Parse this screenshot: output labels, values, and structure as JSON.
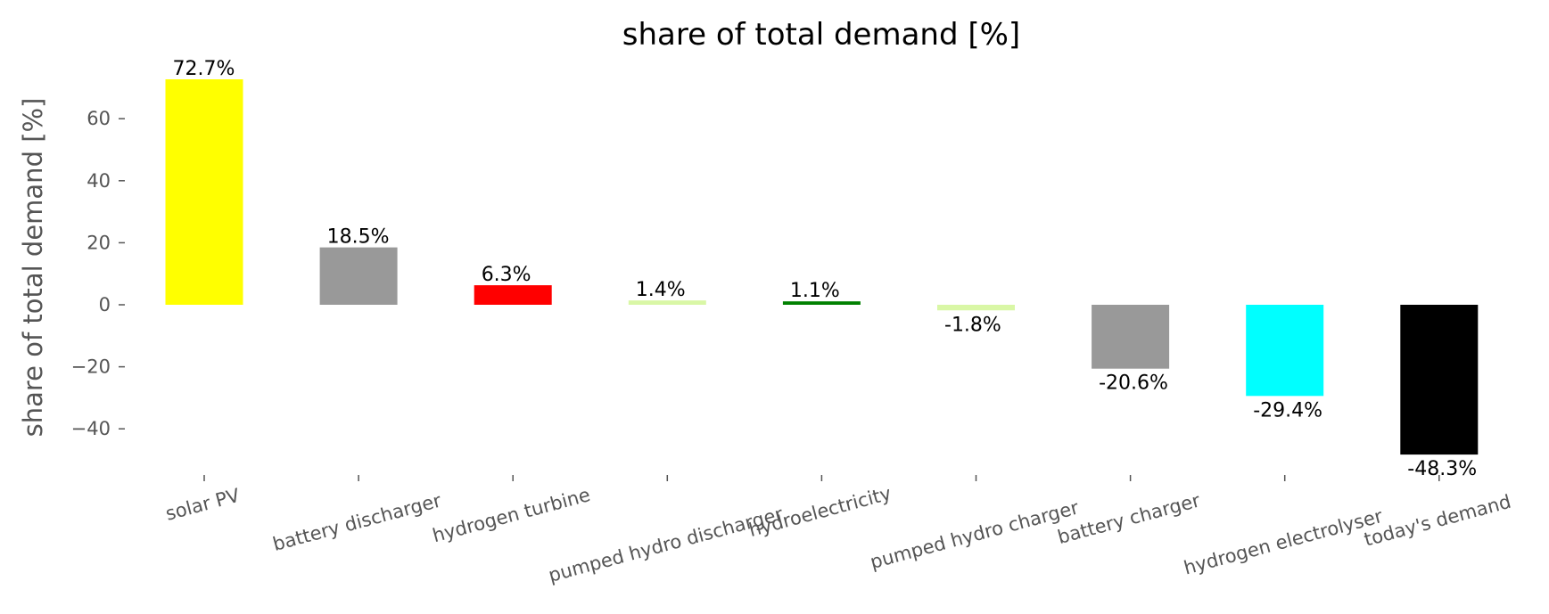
{
  "chart_data": {
    "type": "bar",
    "title": "share of total demand [%]",
    "xlabel": "",
    "ylabel": "share of total demand [%]",
    "categories": [
      "solar PV",
      "battery discharger",
      "hydrogen turbine",
      "pumped hydro discharger",
      "hydroelectricity",
      "pumped hydro charger",
      "battery charger",
      "hydrogen electrolyser",
      "today's demand"
    ],
    "values": [
      72.7,
      18.5,
      6.3,
      1.4,
      1.1,
      -1.8,
      -20.6,
      -29.4,
      -48.3
    ],
    "data_labels": [
      "72.7%",
      "18.5%",
      "6.3%",
      "1.4%",
      "1.1%",
      "-1.8%",
      "-20.6%",
      "-29.4%",
      "-48.3%"
    ],
    "colors": [
      "#ffff00",
      "#999999",
      "#ff0000",
      "#d9f7a6",
      "#008000",
      "#d9f7a6",
      "#999999",
      "#00ffff",
      "#000000"
    ],
    "yticks": [
      -40,
      -20,
      0,
      20,
      40,
      60
    ],
    "ytick_labels": [
      "−40",
      "−20",
      "0",
      "20",
      "40",
      "60"
    ],
    "ylim": [
      -56,
      76
    ],
    "grid": false,
    "legend": "none"
  }
}
